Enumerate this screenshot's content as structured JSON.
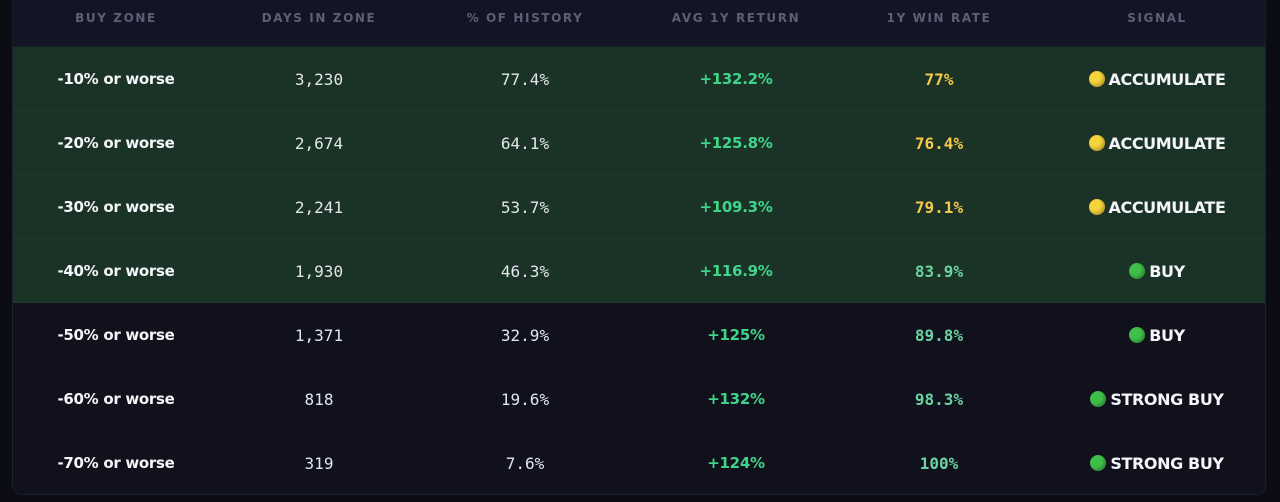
{
  "headers": {
    "buy_zone": "BUY ZONE",
    "days_in_zone": "DAYS IN ZONE",
    "pct_history": "% OF HISTORY",
    "avg_return": "AVG 1Y RETURN",
    "win_rate": "1Y WIN RATE",
    "signal": "SIGNAL"
  },
  "colors": {
    "highlight_row_bg": "#1b3326",
    "normal_row_bg": "#10111c",
    "return_green": "#3fd48a",
    "win_yellow": "#f5c94b",
    "win_green": "#6ad39f",
    "dot_yellow": "#f7d33c",
    "dot_green": "#3fbf4a"
  },
  "rows": [
    {
      "zone": "-10% or worse",
      "days": "3,230",
      "pct": "77.4%",
      "ret": "+132.2%",
      "win": "77%",
      "win_color": "yellow",
      "signal": "ACCUMULATE",
      "signal_icon": "yellow-circle-icon",
      "highlighted": true
    },
    {
      "zone": "-20% or worse",
      "days": "2,674",
      "pct": "64.1%",
      "ret": "+125.8%",
      "win": "76.4%",
      "win_color": "yellow",
      "signal": "ACCUMULATE",
      "signal_icon": "yellow-circle-icon",
      "highlighted": true
    },
    {
      "zone": "-30% or worse",
      "days": "2,241",
      "pct": "53.7%",
      "ret": "+109.3%",
      "win": "79.1%",
      "win_color": "yellow",
      "signal": "ACCUMULATE",
      "signal_icon": "yellow-circle-icon",
      "highlighted": true
    },
    {
      "zone": "-40% or worse",
      "days": "1,930",
      "pct": "46.3%",
      "ret": "+116.9%",
      "win": "83.9%",
      "win_color": "green",
      "signal": "BUY",
      "signal_icon": "green-circle-icon",
      "highlighted": true
    },
    {
      "zone": "-50% or worse",
      "days": "1,371",
      "pct": "32.9%",
      "ret": "+125%",
      "win": "89.8%",
      "win_color": "green",
      "signal": "BUY",
      "signal_icon": "green-circle-icon",
      "highlighted": false
    },
    {
      "zone": "-60% or worse",
      "days": "818",
      "pct": "19.6%",
      "ret": "+132%",
      "win": "98.3%",
      "win_color": "green",
      "signal": "STRONG BUY",
      "signal_icon": "green-circle-icon",
      "highlighted": false
    },
    {
      "zone": "-70% or worse",
      "days": "319",
      "pct": "7.6%",
      "ret": "+124%",
      "win": "100%",
      "win_color": "green",
      "signal": "STRONG BUY",
      "signal_icon": "green-circle-icon",
      "highlighted": false
    }
  ]
}
